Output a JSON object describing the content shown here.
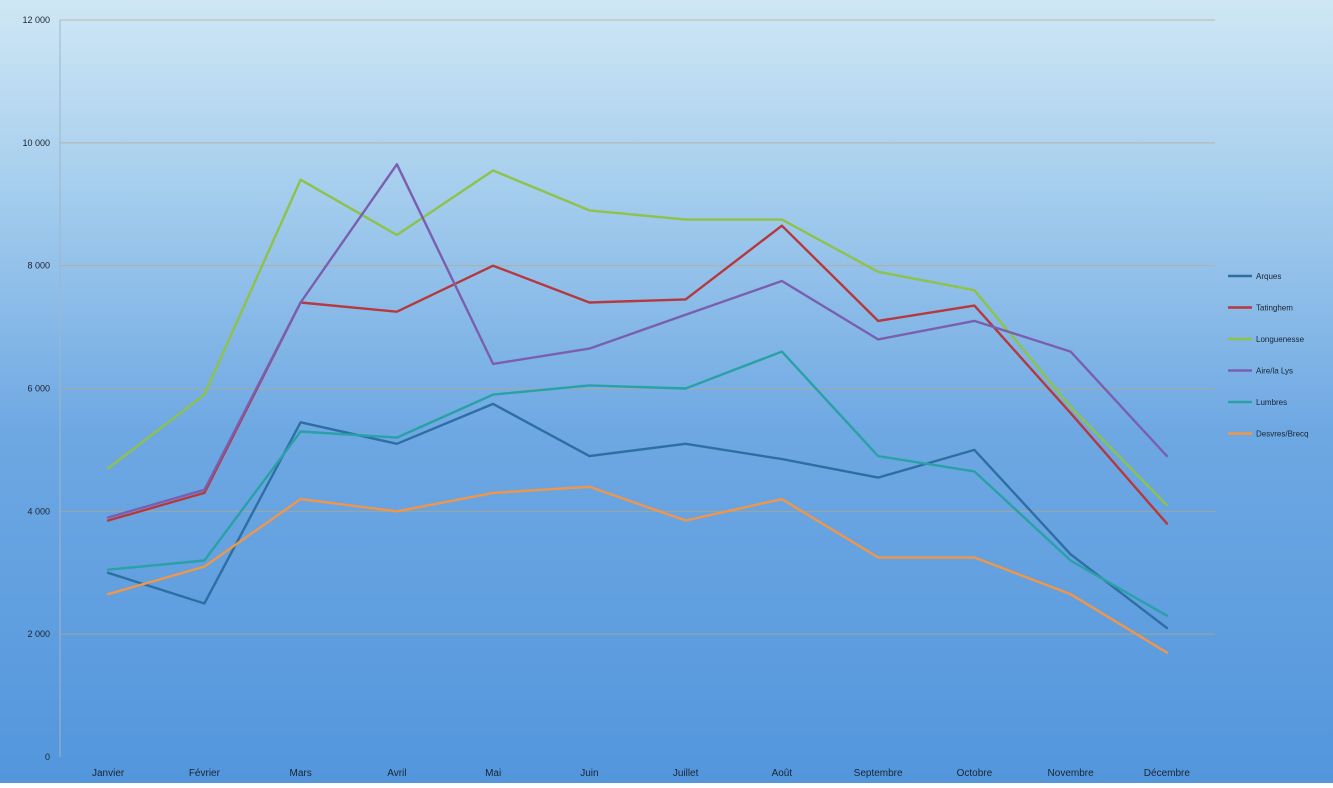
{
  "chart_data": {
    "type": "line",
    "title": "",
    "xlabel": "",
    "ylabel": "",
    "ylim": [
      0,
      12000
    ],
    "yticks": [
      0,
      2000,
      4000,
      6000,
      8000,
      10000,
      12000
    ],
    "ytick_labels": [
      "0",
      "2 000",
      "4 000",
      "6 000",
      "8 000",
      "10 000",
      "12 000"
    ],
    "grid": true,
    "legend_position": "right",
    "categories": [
      "Janvier",
      "Février",
      "Mars",
      "Avril",
      "Mai",
      "Juin",
      "Juillet",
      "Août",
      "Septembre",
      "Octobre",
      "Novembre",
      "Décembre"
    ],
    "series": [
      {
        "name": "Arques",
        "color": "#2e6fa3",
        "values": [
          3000,
          2500,
          5450,
          5100,
          5750,
          4900,
          5100,
          4850,
          4550,
          5000,
          3300,
          2100
        ]
      },
      {
        "name": "Tatinghem",
        "color": "#b5393d",
        "values": [
          3850,
          4300,
          7400,
          7250,
          8000,
          7400,
          7450,
          8650,
          7100,
          7350,
          5600,
          3800
        ]
      },
      {
        "name": "Longuenesse",
        "color": "#8ec24a",
        "values": [
          4700,
          5900,
          9400,
          8500,
          9550,
          8900,
          8750,
          8750,
          7900,
          7600,
          5700,
          4100
        ]
      },
      {
        "name": "Aire/la Lys",
        "color": "#7a5fb0",
        "values": [
          3900,
          4350,
          7400,
          9650,
          6400,
          6650,
          7200,
          7750,
          6800,
          7100,
          6600,
          4900
        ]
      },
      {
        "name": "Lumbres",
        "color": "#2aa1a6",
        "values": [
          3050,
          3200,
          5300,
          5200,
          5900,
          6050,
          6000,
          6600,
          4900,
          4650,
          3200,
          2300
        ]
      },
      {
        "name": "Desvres/Brecq",
        "color": "#f0964b",
        "values": [
          2650,
          3100,
          4200,
          4000,
          4300,
          4400,
          3850,
          4200,
          3250,
          3250,
          2650,
          1700
        ]
      }
    ]
  },
  "colors": {
    "background_light": "#c8e4f3",
    "background_dark": "#4a8fd6",
    "gridline": "#b8a882"
  }
}
